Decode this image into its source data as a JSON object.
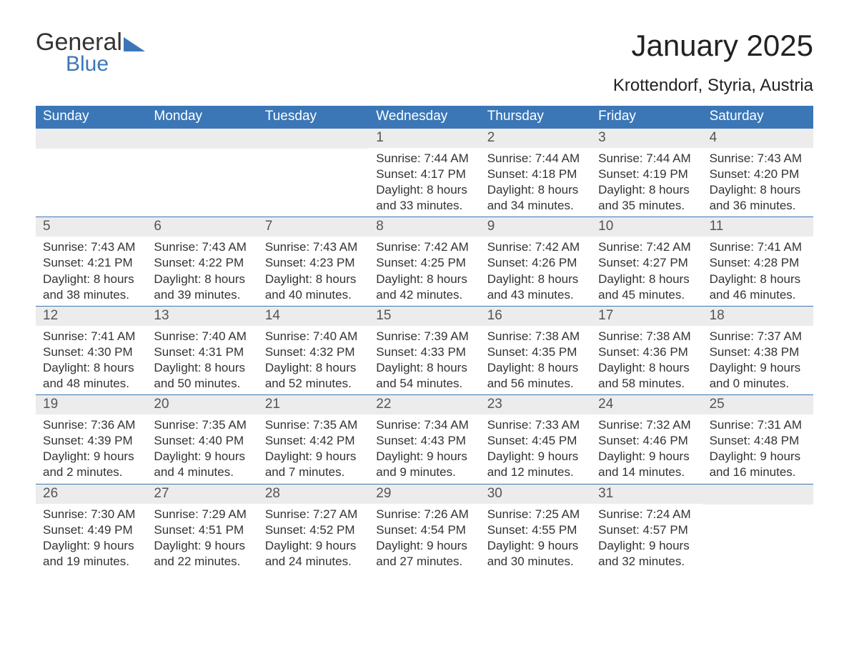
{
  "logo": {
    "word1": "General",
    "word2": "Blue"
  },
  "title": "January 2025",
  "location": "Krottendorf, Styria, Austria",
  "colors": {
    "header_bg": "#3b77b7",
    "header_text": "#ffffff",
    "daynum_bg": "#ececec",
    "daynum_text": "#555555",
    "body_text": "#333333",
    "rule": "#3b77b7",
    "page_bg": "#ffffff",
    "logo_accent": "#3b77b7"
  },
  "typography": {
    "title_fontsize": 42,
    "location_fontsize": 24,
    "weekday_fontsize": 19,
    "daynum_fontsize": 19,
    "body_fontsize": 17
  },
  "weekdays": [
    "Sunday",
    "Monday",
    "Tuesday",
    "Wednesday",
    "Thursday",
    "Friday",
    "Saturday"
  ],
  "weeks": [
    [
      null,
      null,
      null,
      {
        "n": "1",
        "sunrise": "Sunrise: 7:44 AM",
        "sunset": "Sunset: 4:17 PM",
        "d1": "Daylight: 8 hours",
        "d2": "and 33 minutes."
      },
      {
        "n": "2",
        "sunrise": "Sunrise: 7:44 AM",
        "sunset": "Sunset: 4:18 PM",
        "d1": "Daylight: 8 hours",
        "d2": "and 34 minutes."
      },
      {
        "n": "3",
        "sunrise": "Sunrise: 7:44 AM",
        "sunset": "Sunset: 4:19 PM",
        "d1": "Daylight: 8 hours",
        "d2": "and 35 minutes."
      },
      {
        "n": "4",
        "sunrise": "Sunrise: 7:43 AM",
        "sunset": "Sunset: 4:20 PM",
        "d1": "Daylight: 8 hours",
        "d2": "and 36 minutes."
      }
    ],
    [
      {
        "n": "5",
        "sunrise": "Sunrise: 7:43 AM",
        "sunset": "Sunset: 4:21 PM",
        "d1": "Daylight: 8 hours",
        "d2": "and 38 minutes."
      },
      {
        "n": "6",
        "sunrise": "Sunrise: 7:43 AM",
        "sunset": "Sunset: 4:22 PM",
        "d1": "Daylight: 8 hours",
        "d2": "and 39 minutes."
      },
      {
        "n": "7",
        "sunrise": "Sunrise: 7:43 AM",
        "sunset": "Sunset: 4:23 PM",
        "d1": "Daylight: 8 hours",
        "d2": "and 40 minutes."
      },
      {
        "n": "8",
        "sunrise": "Sunrise: 7:42 AM",
        "sunset": "Sunset: 4:25 PM",
        "d1": "Daylight: 8 hours",
        "d2": "and 42 minutes."
      },
      {
        "n": "9",
        "sunrise": "Sunrise: 7:42 AM",
        "sunset": "Sunset: 4:26 PM",
        "d1": "Daylight: 8 hours",
        "d2": "and 43 minutes."
      },
      {
        "n": "10",
        "sunrise": "Sunrise: 7:42 AM",
        "sunset": "Sunset: 4:27 PM",
        "d1": "Daylight: 8 hours",
        "d2": "and 45 minutes."
      },
      {
        "n": "11",
        "sunrise": "Sunrise: 7:41 AM",
        "sunset": "Sunset: 4:28 PM",
        "d1": "Daylight: 8 hours",
        "d2": "and 46 minutes."
      }
    ],
    [
      {
        "n": "12",
        "sunrise": "Sunrise: 7:41 AM",
        "sunset": "Sunset: 4:30 PM",
        "d1": "Daylight: 8 hours",
        "d2": "and 48 minutes."
      },
      {
        "n": "13",
        "sunrise": "Sunrise: 7:40 AM",
        "sunset": "Sunset: 4:31 PM",
        "d1": "Daylight: 8 hours",
        "d2": "and 50 minutes."
      },
      {
        "n": "14",
        "sunrise": "Sunrise: 7:40 AM",
        "sunset": "Sunset: 4:32 PM",
        "d1": "Daylight: 8 hours",
        "d2": "and 52 minutes."
      },
      {
        "n": "15",
        "sunrise": "Sunrise: 7:39 AM",
        "sunset": "Sunset: 4:33 PM",
        "d1": "Daylight: 8 hours",
        "d2": "and 54 minutes."
      },
      {
        "n": "16",
        "sunrise": "Sunrise: 7:38 AM",
        "sunset": "Sunset: 4:35 PM",
        "d1": "Daylight: 8 hours",
        "d2": "and 56 minutes."
      },
      {
        "n": "17",
        "sunrise": "Sunrise: 7:38 AM",
        "sunset": "Sunset: 4:36 PM",
        "d1": "Daylight: 8 hours",
        "d2": "and 58 minutes."
      },
      {
        "n": "18",
        "sunrise": "Sunrise: 7:37 AM",
        "sunset": "Sunset: 4:38 PM",
        "d1": "Daylight: 9 hours",
        "d2": "and 0 minutes."
      }
    ],
    [
      {
        "n": "19",
        "sunrise": "Sunrise: 7:36 AM",
        "sunset": "Sunset: 4:39 PM",
        "d1": "Daylight: 9 hours",
        "d2": "and 2 minutes."
      },
      {
        "n": "20",
        "sunrise": "Sunrise: 7:35 AM",
        "sunset": "Sunset: 4:40 PM",
        "d1": "Daylight: 9 hours",
        "d2": "and 4 minutes."
      },
      {
        "n": "21",
        "sunrise": "Sunrise: 7:35 AM",
        "sunset": "Sunset: 4:42 PM",
        "d1": "Daylight: 9 hours",
        "d2": "and 7 minutes."
      },
      {
        "n": "22",
        "sunrise": "Sunrise: 7:34 AM",
        "sunset": "Sunset: 4:43 PM",
        "d1": "Daylight: 9 hours",
        "d2": "and 9 minutes."
      },
      {
        "n": "23",
        "sunrise": "Sunrise: 7:33 AM",
        "sunset": "Sunset: 4:45 PM",
        "d1": "Daylight: 9 hours",
        "d2": "and 12 minutes."
      },
      {
        "n": "24",
        "sunrise": "Sunrise: 7:32 AM",
        "sunset": "Sunset: 4:46 PM",
        "d1": "Daylight: 9 hours",
        "d2": "and 14 minutes."
      },
      {
        "n": "25",
        "sunrise": "Sunrise: 7:31 AM",
        "sunset": "Sunset: 4:48 PM",
        "d1": "Daylight: 9 hours",
        "d2": "and 16 minutes."
      }
    ],
    [
      {
        "n": "26",
        "sunrise": "Sunrise: 7:30 AM",
        "sunset": "Sunset: 4:49 PM",
        "d1": "Daylight: 9 hours",
        "d2": "and 19 minutes."
      },
      {
        "n": "27",
        "sunrise": "Sunrise: 7:29 AM",
        "sunset": "Sunset: 4:51 PM",
        "d1": "Daylight: 9 hours",
        "d2": "and 22 minutes."
      },
      {
        "n": "28",
        "sunrise": "Sunrise: 7:27 AM",
        "sunset": "Sunset: 4:52 PM",
        "d1": "Daylight: 9 hours",
        "d2": "and 24 minutes."
      },
      {
        "n": "29",
        "sunrise": "Sunrise: 7:26 AM",
        "sunset": "Sunset: 4:54 PM",
        "d1": "Daylight: 9 hours",
        "d2": "and 27 minutes."
      },
      {
        "n": "30",
        "sunrise": "Sunrise: 7:25 AM",
        "sunset": "Sunset: 4:55 PM",
        "d1": "Daylight: 9 hours",
        "d2": "and 30 minutes."
      },
      {
        "n": "31",
        "sunrise": "Sunrise: 7:24 AM",
        "sunset": "Sunset: 4:57 PM",
        "d1": "Daylight: 9 hours",
        "d2": "and 32 minutes."
      },
      null
    ]
  ]
}
